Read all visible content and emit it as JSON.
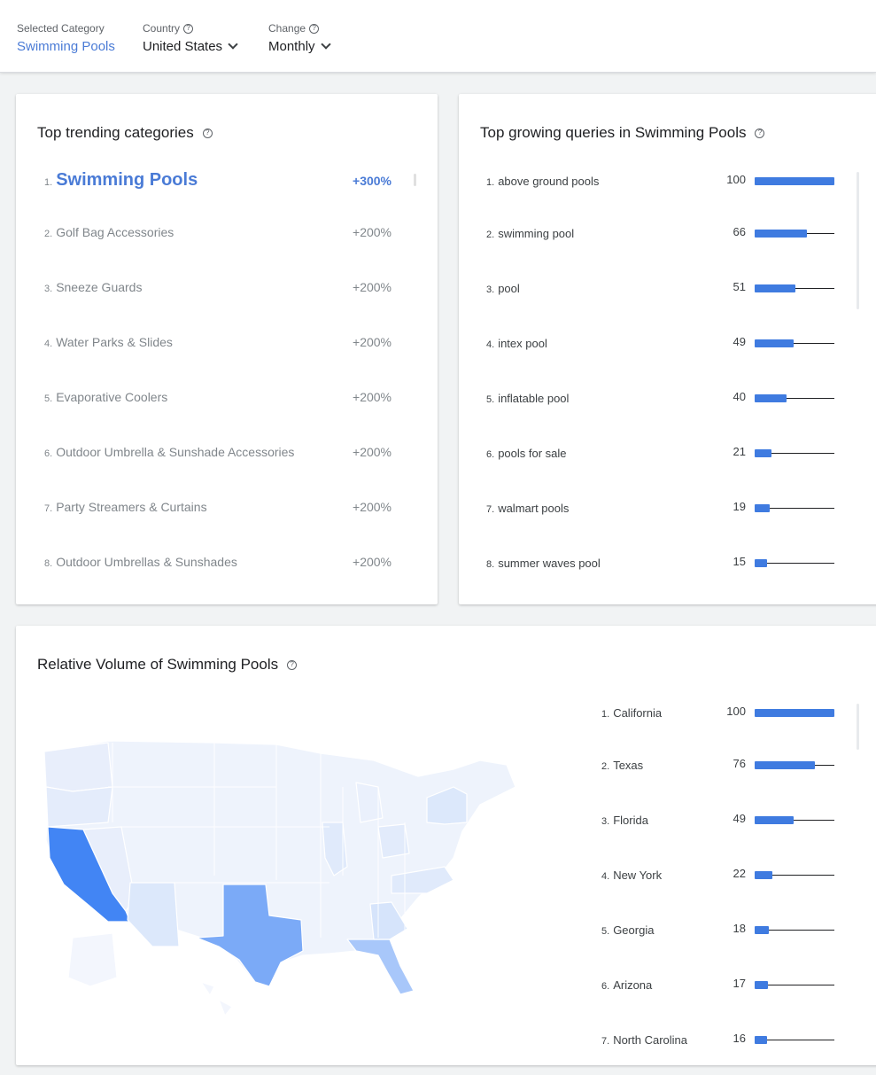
{
  "filters": {
    "category": {
      "label": "Selected Category",
      "value": "Swimming Pools"
    },
    "country": {
      "label": "Country",
      "value": "United States"
    },
    "change": {
      "label": "Change",
      "value": "Monthly"
    }
  },
  "trending": {
    "title": "Top trending categories",
    "items": [
      {
        "rank": "1.",
        "name": "Swimming Pools",
        "change": "+300%"
      },
      {
        "rank": "2.",
        "name": "Golf Bag Accessories",
        "change": "+200%"
      },
      {
        "rank": "3.",
        "name": "Sneeze Guards",
        "change": "+200%"
      },
      {
        "rank": "4.",
        "name": "Water Parks & Slides",
        "change": "+200%"
      },
      {
        "rank": "5.",
        "name": "Evaporative Coolers",
        "change": "+200%"
      },
      {
        "rank": "6.",
        "name": "Outdoor Umbrella & Sunshade Accessories",
        "change": "+200%"
      },
      {
        "rank": "7.",
        "name": "Party Streamers & Curtains",
        "change": "+200%"
      },
      {
        "rank": "8.",
        "name": "Outdoor Umbrellas & Sunshades",
        "change": "+200%"
      }
    ]
  },
  "queries": {
    "title": "Top growing queries in Swimming Pools",
    "items": [
      {
        "rank": "1.",
        "name": "above ground pools",
        "value": 100
      },
      {
        "rank": "2.",
        "name": "swimming pool",
        "value": 66
      },
      {
        "rank": "3.",
        "name": "pool",
        "value": 51
      },
      {
        "rank": "4.",
        "name": "intex pool",
        "value": 49
      },
      {
        "rank": "5.",
        "name": "inflatable pool",
        "value": 40
      },
      {
        "rank": "6.",
        "name": "pools for sale",
        "value": 21
      },
      {
        "rank": "7.",
        "name": "walmart pools",
        "value": 19
      },
      {
        "rank": "8.",
        "name": "summer waves pool",
        "value": 15
      }
    ]
  },
  "volume": {
    "title": "Relative Volume of Swimming Pools",
    "items": [
      {
        "rank": "1.",
        "name": "California",
        "value": 100
      },
      {
        "rank": "2.",
        "name": "Texas",
        "value": 76
      },
      {
        "rank": "3.",
        "name": "Florida",
        "value": 49
      },
      {
        "rank": "4.",
        "name": "New York",
        "value": 22
      },
      {
        "rank": "5.",
        "name": "Georgia",
        "value": 18
      },
      {
        "rank": "6.",
        "name": "Arizona",
        "value": 17
      },
      {
        "rank": "7.",
        "name": "North Carolina",
        "value": 16
      }
    ]
  },
  "colors": {
    "accent": "#4a7bd6",
    "bar": "#3f7be0",
    "map_high": "#4285f4",
    "map_mid": "#7baaf7",
    "map_low": "#a8c7fa",
    "map_faint": "#dce8fb",
    "map_base": "#eef3fc"
  }
}
